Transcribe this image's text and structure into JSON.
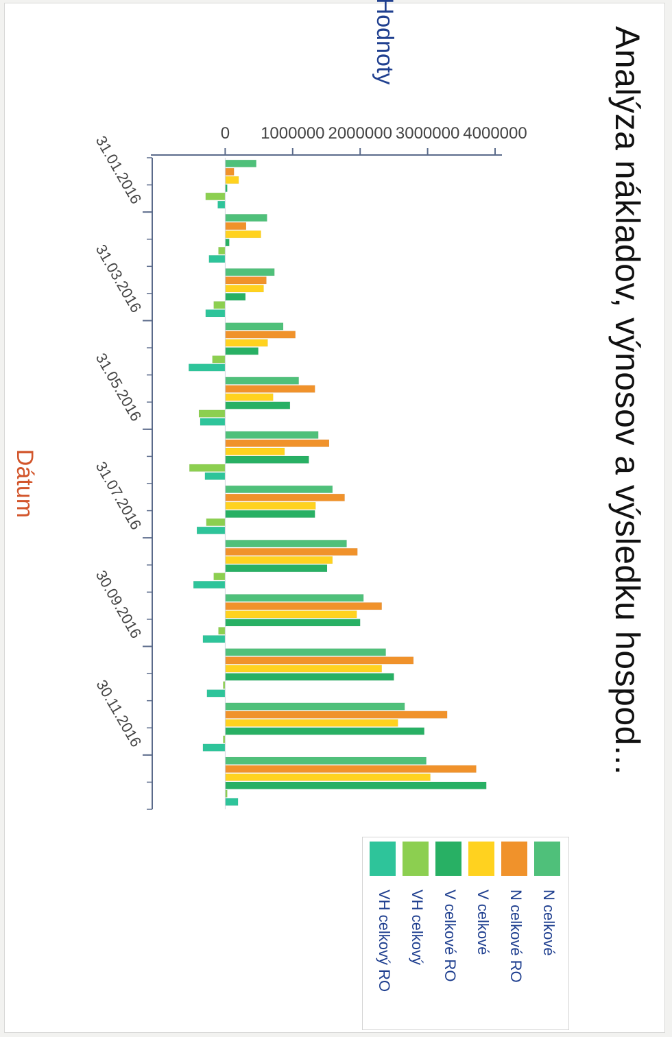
{
  "chart_data": {
    "type": "bar",
    "title": "Analýza nákladov, výnosov a výsledku hospod...",
    "ylabel": "Hodnoty",
    "xlabel": "Dátum",
    "ylim": [
      -1000000,
      4000000
    ],
    "yticks": [
      "0",
      "1000000",
      "2000000",
      "3000000",
      "4000000"
    ],
    "xticks": [
      "31.01.2016",
      "31.03.2016",
      "31.05.2016",
      "31.07.2016",
      "30.09.2016",
      "30.11.2016"
    ],
    "legend_position": "right",
    "grid": false,
    "series": [
      {
        "name": "N celkové",
        "color": "#4fc07a",
        "values": [
          460000,
          620000,
          730000,
          860000,
          1090000,
          1380000,
          1590000,
          1800000,
          2050000,
          2380000,
          2660000,
          2980000
        ]
      },
      {
        "name": "N celkové RO",
        "color": "#f0922b",
        "values": [
          130000,
          310000,
          610000,
          1040000,
          1330000,
          1540000,
          1770000,
          1960000,
          2320000,
          2790000,
          3290000,
          3720000
        ]
      },
      {
        "name": "V celkové",
        "color": "#ffd21f",
        "values": [
          200000,
          530000,
          570000,
          630000,
          710000,
          880000,
          1340000,
          1590000,
          1950000,
          2320000,
          2560000,
          3040000
        ]
      },
      {
        "name": "V celkové RO",
        "color": "#28b064",
        "values": [
          30000,
          60000,
          300000,
          490000,
          960000,
          1240000,
          1330000,
          1510000,
          2000000,
          2500000,
          2950000,
          3870000
        ]
      },
      {
        "name": "VH celkový",
        "color": "#8ccf50",
        "values": [
          -290000,
          -100000,
          -170000,
          -190000,
          -390000,
          -530000,
          -280000,
          -170000,
          -100000,
          -30000,
          -30000,
          30000
        ]
      },
      {
        "name": "VH celkový RO",
        "color": "#2ec49a",
        "values": [
          -110000,
          -240000,
          -290000,
          -540000,
          -370000,
          -300000,
          -420000,
          -470000,
          -330000,
          -270000,
          -330000,
          190000
        ]
      }
    ]
  }
}
